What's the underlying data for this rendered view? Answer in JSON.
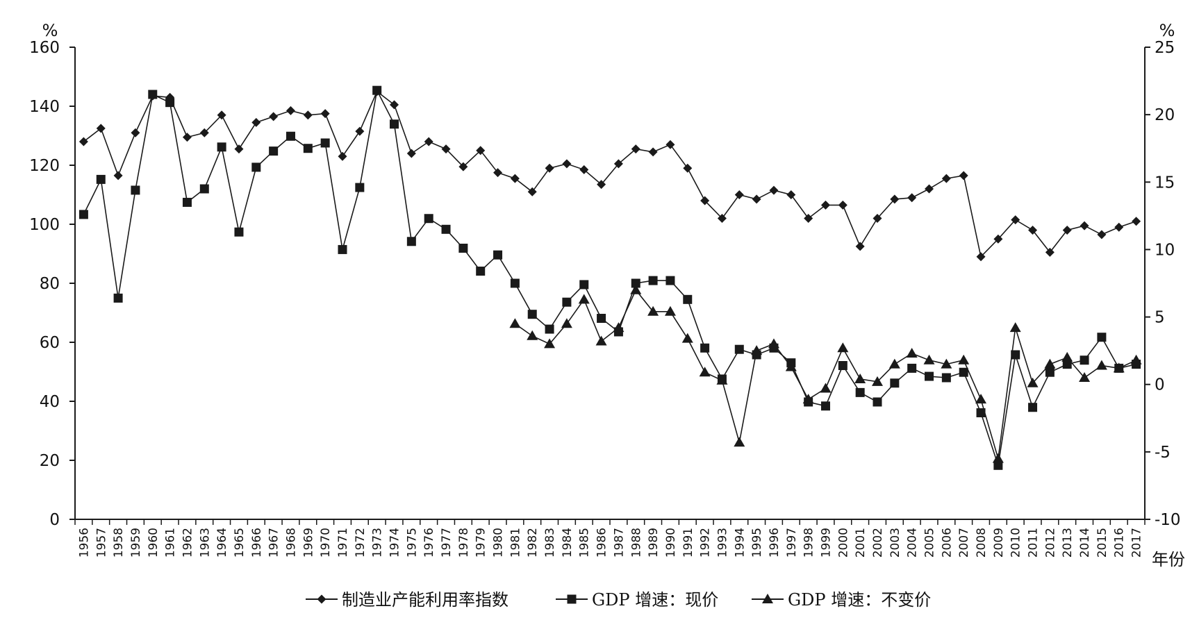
{
  "chart_data": {
    "type": "line",
    "x": [
      "1956",
      "1957",
      "1958",
      "1959",
      "1960",
      "1961",
      "1962",
      "1963",
      "1964",
      "1965",
      "1966",
      "1967",
      "1968",
      "1969",
      "1970",
      "1971",
      "1972",
      "1973",
      "1974",
      "1975",
      "1976",
      "1977",
      "1978",
      "1979",
      "1980",
      "1981",
      "1982",
      "1983",
      "1984",
      "1985",
      "1986",
      "1987",
      "1988",
      "1989",
      "1990",
      "1991",
      "1992",
      "1993",
      "1994",
      "1995",
      "1996",
      "1997",
      "1998",
      "1999",
      "2000",
      "2001",
      "2002",
      "2003",
      "2004",
      "2005",
      "2006",
      "2007",
      "2008",
      "2009",
      "2010",
      "2011",
      "2012",
      "2013",
      "2014",
      "2015",
      "2016",
      "2017"
    ],
    "xlabel": "年份",
    "y_left_unit": "%",
    "y_right_unit": "%",
    "y_left_lim": [
      0,
      160
    ],
    "y_right_lim": [
      -10,
      25
    ],
    "y_left_ticks": [
      "0",
      "20",
      "40",
      "60",
      "80",
      "100",
      "120",
      "140",
      "160"
    ],
    "y_right_ticks": [
      "-10",
      "-5",
      "0",
      "5",
      "10",
      "15",
      "20",
      "25"
    ],
    "grid": false,
    "legend_position": "bottom",
    "series": [
      {
        "name": "制造业产能利用率指数",
        "axis": "left",
        "marker": "diamond",
        "values": [
          128,
          132.5,
          116.5,
          131,
          143.5,
          143,
          129.5,
          131,
          137,
          125.5,
          134.5,
          136.5,
          138.5,
          137,
          137.5,
          123,
          131.5,
          145,
          140.5,
          124,
          128,
          125.5,
          119.5,
          125,
          117.5,
          115.5,
          111,
          119,
          120.5,
          118.5,
          113.5,
          120.5,
          125.5,
          124.5,
          127,
          119,
          108,
          102,
          110,
          108.5,
          111.5,
          110,
          102,
          106.5,
          106.5,
          92.5,
          102,
          108.5,
          109,
          112,
          115.5,
          116.5,
          89,
          95,
          101.5,
          98,
          90.5,
          98,
          99.5,
          96.5,
          99,
          101
        ]
      },
      {
        "name": "GDP 增速：现价",
        "axis": "right",
        "marker": "square",
        "values": [
          12.6,
          15.2,
          6.4,
          14.4,
          21.5,
          20.9,
          13.5,
          14.5,
          17.6,
          11.3,
          16.1,
          17.3,
          18.4,
          17.5,
          17.9,
          10,
          14.6,
          21.8,
          19.3,
          10.6,
          12.3,
          11.5,
          10.1,
          8.4,
          9.6,
          7.5,
          5.2,
          4.1,
          6.1,
          7.4,
          4.9,
          3.9,
          7.5,
          7.7,
          7.7,
          6.3,
          2.7,
          0.4,
          2.6,
          2.2,
          2.7,
          1.6,
          -1.3,
          -1.6,
          1.4,
          -0.6,
          -1.3,
          0.1,
          1.2,
          0.6,
          0.5,
          0.9,
          -2.1,
          -6.0,
          2.2,
          -1.7,
          0.9,
          1.5,
          1.8,
          3.5,
          1.2,
          1.5
        ]
      },
      {
        "name": "GDP 增速：不变价",
        "axis": "right",
        "marker": "triangle",
        "values": [
          null,
          null,
          null,
          null,
          null,
          null,
          null,
          null,
          null,
          null,
          null,
          null,
          null,
          null,
          null,
          null,
          null,
          null,
          null,
          null,
          null,
          null,
          null,
          null,
          null,
          4.5,
          3.6,
          3.0,
          4.5,
          6.3,
          3.2,
          4.2,
          7.0,
          5.4,
          5.4,
          3.4,
          0.9,
          0.3,
          -4.3,
          2.5,
          3.0,
          1.3,
          -1.1,
          -0.3,
          2.7,
          0.4,
          0.2,
          1.5,
          2.3,
          1.8,
          1.5,
          1.8,
          -1.1,
          -5.5,
          4.2,
          0.1,
          1.5,
          2.0,
          0.5,
          1.4,
          1.2,
          1.8
        ]
      }
    ]
  },
  "colors": {
    "line": "#1a1a1a",
    "axis": "#1a1a1a",
    "background": "#ffffff"
  }
}
